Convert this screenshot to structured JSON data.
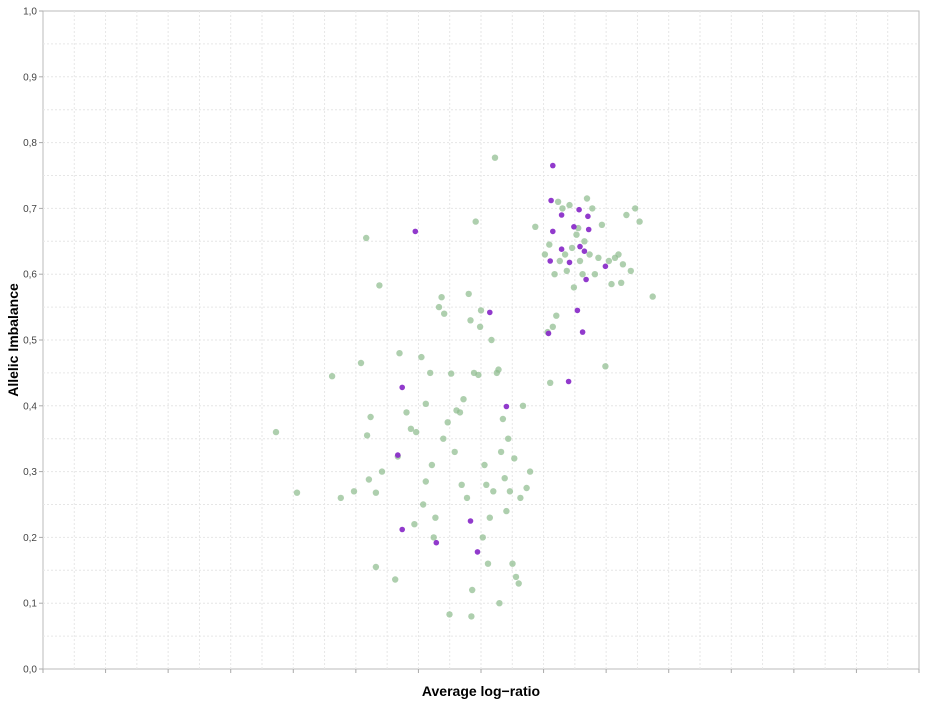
{
  "chart_data": {
    "type": "scatter",
    "xlabel": "Average log−ratio",
    "ylabel": "Allelic Imbalance",
    "ylim": [
      0,
      1
    ],
    "y_ticks": [
      "0,0",
      "0,1",
      "0,2",
      "0,3",
      "0,4",
      "0,5",
      "0,6",
      "0,7",
      "0,8",
      "0,9",
      "1,0"
    ],
    "y_tick_values": [
      0,
      0.1,
      0.2,
      0.3,
      0.4,
      0.5,
      0.6,
      0.7,
      0.8,
      0.9,
      1.0
    ],
    "xlim": [
      0,
      1
    ],
    "grid": true,
    "legend": "none",
    "colors": {
      "green": "#8fbc8f",
      "purple": "#8b2fc9",
      "grid": "#e6e6e6",
      "axis": "#aaaaaa"
    },
    "series": [
      {
        "color": "#8fbc8f",
        "points": [
          [
            0.266,
            0.36
          ],
          [
            0.29,
            0.268
          ],
          [
            0.33,
            0.445
          ],
          [
            0.34,
            0.26
          ],
          [
            0.355,
            0.27
          ],
          [
            0.363,
            0.465
          ],
          [
            0.369,
            0.655
          ],
          [
            0.37,
            0.355
          ],
          [
            0.372,
            0.288
          ],
          [
            0.374,
            0.383
          ],
          [
            0.38,
            0.155
          ],
          [
            0.38,
            0.268
          ],
          [
            0.384,
            0.583
          ],
          [
            0.387,
            0.3
          ],
          [
            0.402,
            0.136
          ],
          [
            0.405,
            0.323
          ],
          [
            0.407,
            0.48
          ],
          [
            0.415,
            0.39
          ],
          [
            0.42,
            0.365
          ],
          [
            0.424,
            0.22
          ],
          [
            0.426,
            0.36
          ],
          [
            0.432,
            0.474
          ],
          [
            0.434,
            0.25
          ],
          [
            0.437,
            0.285
          ],
          [
            0.437,
            0.403
          ],
          [
            0.442,
            0.45
          ],
          [
            0.444,
            0.31
          ],
          [
            0.446,
            0.2
          ],
          [
            0.448,
            0.23
          ],
          [
            0.452,
            0.55
          ],
          [
            0.455,
            0.565
          ],
          [
            0.458,
            0.54
          ],
          [
            0.457,
            0.35
          ],
          [
            0.462,
            0.375
          ],
          [
            0.464,
            0.083
          ],
          [
            0.466,
            0.449
          ],
          [
            0.47,
            0.33
          ],
          [
            0.472,
            0.393
          ],
          [
            0.476,
            0.39
          ],
          [
            0.478,
            0.28
          ],
          [
            0.48,
            0.41
          ],
          [
            0.484,
            0.26
          ],
          [
            0.486,
            0.57
          ],
          [
            0.488,
            0.53
          ],
          [
            0.489,
            0.08
          ],
          [
            0.49,
            0.12
          ],
          [
            0.492,
            0.45
          ],
          [
            0.494,
            0.68
          ],
          [
            0.497,
            0.447
          ],
          [
            0.499,
            0.52
          ],
          [
            0.5,
            0.545
          ],
          [
            0.502,
            0.2
          ],
          [
            0.504,
            0.31
          ],
          [
            0.506,
            0.28
          ],
          [
            0.508,
            0.16
          ],
          [
            0.51,
            0.23
          ],
          [
            0.512,
            0.5
          ],
          [
            0.514,
            0.27
          ],
          [
            0.516,
            0.777
          ],
          [
            0.518,
            0.45
          ],
          [
            0.52,
            0.455
          ],
          [
            0.521,
            0.1
          ],
          [
            0.523,
            0.33
          ],
          [
            0.525,
            0.38
          ],
          [
            0.527,
            0.29
          ],
          [
            0.529,
            0.24
          ],
          [
            0.531,
            0.35
          ],
          [
            0.533,
            0.27
          ],
          [
            0.536,
            0.16
          ],
          [
            0.538,
            0.32
          ],
          [
            0.54,
            0.14
          ],
          [
            0.543,
            0.13
          ],
          [
            0.545,
            0.26
          ],
          [
            0.548,
            0.4
          ],
          [
            0.552,
            0.275
          ],
          [
            0.556,
            0.3
          ],
          [
            0.562,
            0.672
          ],
          [
            0.573,
            0.63
          ],
          [
            0.576,
            0.512
          ],
          [
            0.578,
            0.645
          ],
          [
            0.579,
            0.435
          ],
          [
            0.582,
            0.52
          ],
          [
            0.584,
            0.6
          ],
          [
            0.586,
            0.537
          ],
          [
            0.588,
            0.71
          ],
          [
            0.59,
            0.62
          ],
          [
            0.593,
            0.7
          ],
          [
            0.596,
            0.63
          ],
          [
            0.598,
            0.605
          ],
          [
            0.601,
            0.705
          ],
          [
            0.604,
            0.64
          ],
          [
            0.606,
            0.58
          ],
          [
            0.609,
            0.66
          ],
          [
            0.611,
            0.67
          ],
          [
            0.613,
            0.62
          ],
          [
            0.616,
            0.6
          ],
          [
            0.618,
            0.65
          ],
          [
            0.621,
            0.715
          ],
          [
            0.624,
            0.63
          ],
          [
            0.627,
            0.7
          ],
          [
            0.63,
            0.6
          ],
          [
            0.634,
            0.625
          ],
          [
            0.638,
            0.675
          ],
          [
            0.642,
            0.46
          ],
          [
            0.646,
            0.62
          ],
          [
            0.649,
            0.585
          ],
          [
            0.653,
            0.625
          ],
          [
            0.657,
            0.63
          ],
          [
            0.66,
            0.587
          ],
          [
            0.662,
            0.615
          ],
          [
            0.666,
            0.69
          ],
          [
            0.671,
            0.605
          ],
          [
            0.676,
            0.7
          ],
          [
            0.681,
            0.68
          ],
          [
            0.696,
            0.566
          ]
        ]
      },
      {
        "color": "#8b2fc9",
        "points": [
          [
            0.425,
            0.665
          ],
          [
            0.405,
            0.325
          ],
          [
            0.41,
            0.428
          ],
          [
            0.41,
            0.212
          ],
          [
            0.449,
            0.192
          ],
          [
            0.488,
            0.225
          ],
          [
            0.496,
            0.178
          ],
          [
            0.51,
            0.542
          ],
          [
            0.529,
            0.399
          ],
          [
            0.577,
            0.51
          ],
          [
            0.579,
            0.62
          ],
          [
            0.582,
            0.665
          ],
          [
            0.58,
            0.712
          ],
          [
            0.582,
            0.765
          ],
          [
            0.592,
            0.69
          ],
          [
            0.592,
            0.638
          ],
          [
            0.6,
            0.437
          ],
          [
            0.601,
            0.618
          ],
          [
            0.606,
            0.672
          ],
          [
            0.61,
            0.545
          ],
          [
            0.612,
            0.698
          ],
          [
            0.613,
            0.642
          ],
          [
            0.616,
            0.512
          ],
          [
            0.618,
            0.635
          ],
          [
            0.62,
            0.592
          ],
          [
            0.622,
            0.688
          ],
          [
            0.623,
            0.668
          ],
          [
            0.642,
            0.612
          ]
        ]
      }
    ]
  }
}
